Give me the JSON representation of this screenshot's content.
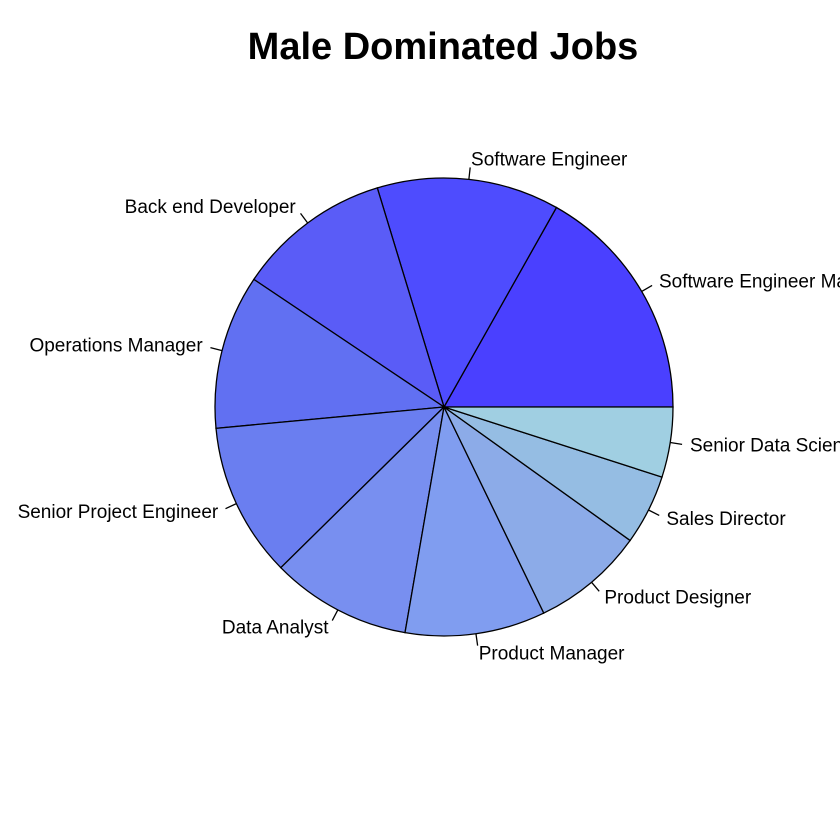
{
  "chart_data": {
    "type": "pie",
    "title": "Male Dominated Jobs",
    "categories": [
      "Software Engineer Manager",
      "Software Engineer",
      "Back end Developer",
      "Operations Manager",
      "Senior Project Engineer",
      "Data Analyst",
      "Product Manager",
      "Product Designer",
      "Sales Director",
      "Senior Data Scientist"
    ],
    "values": [
      17,
      13,
      11,
      11,
      11,
      10,
      10,
      8,
      5,
      5
    ],
    "colors": [
      "#4a40ff",
      "#4e4cfe",
      "#5a5cf7",
      "#6170f2",
      "#6a7ef0",
      "#788ff0",
      "#809df0",
      "#8cabe8",
      "#95bde3",
      "#a0cfe2"
    ],
    "start_angle_degrees": 0,
    "direction": "counterclockwise"
  }
}
